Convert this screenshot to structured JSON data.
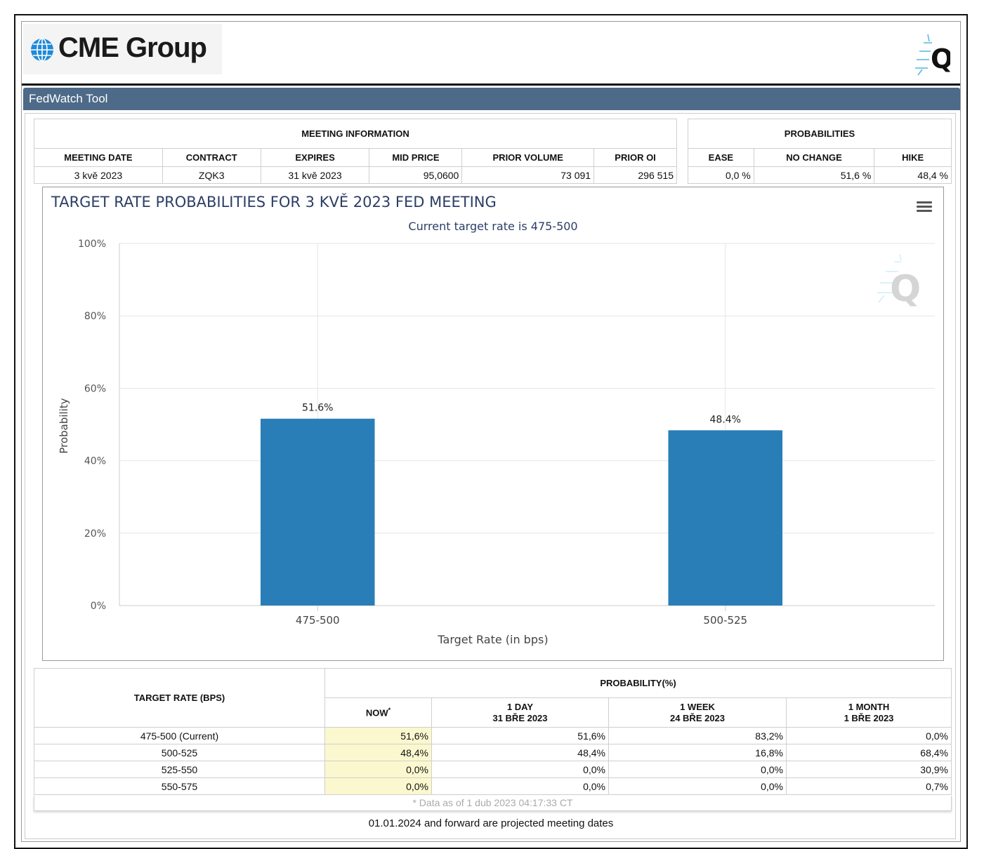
{
  "header": {
    "logo_text": "CME Group",
    "tool_title": "FedWatch Tool",
    "q_icon": "q-logo-icon"
  },
  "meeting_info": {
    "section_title": "MEETING INFORMATION",
    "columns": [
      "MEETING DATE",
      "CONTRACT",
      "EXPIRES",
      "MID PRICE",
      "PRIOR VOLUME",
      "PRIOR OI"
    ],
    "row": [
      "3 kvě 2023",
      "ZQK3",
      "31 kvě 2023",
      "95,0600",
      "73 091",
      "296 515"
    ]
  },
  "probabilities": {
    "section_title": "PROBABILITIES",
    "columns": [
      "EASE",
      "NO CHANGE",
      "HIKE"
    ],
    "row": [
      "0,0 %",
      "51,6 %",
      "48,4 %"
    ]
  },
  "chart": {
    "menu_icon": "hamburger-menu-icon",
    "watermark_icon": "q-watermark-icon"
  },
  "chart_data": {
    "type": "bar",
    "title": "TARGET RATE PROBABILITIES FOR 3 KVĚ 2023 FED MEETING",
    "subtitle": "Current target rate is 475-500",
    "categories": [
      "475-500",
      "500-525"
    ],
    "values": [
      51.6,
      48.4
    ],
    "data_labels": [
      "51.6%",
      "48.4%"
    ],
    "xlabel": "Target Rate (in bps)",
    "ylabel": "Probability",
    "ylim": [
      0,
      100
    ],
    "yticks": [
      "0%",
      "20%",
      "40%",
      "60%",
      "80%",
      "100%"
    ],
    "grid": true,
    "bar_color": "#2a7eb8"
  },
  "prob_table": {
    "rate_header": "TARGET RATE (BPS)",
    "prob_header": "PROBABILITY(%)",
    "col_now": "NOW",
    "col_now_mark": "*",
    "col_1day": [
      "1 DAY",
      "31 BŘE 2023"
    ],
    "col_1week": [
      "1 WEEK",
      "24 BŘE 2023"
    ],
    "col_1month": [
      "1 MONTH",
      "1 BŘE 2023"
    ],
    "rows": [
      {
        "rate": "475-500 (Current)",
        "now": "51,6%",
        "day": "51,6%",
        "week": "83,2%",
        "month": "0,0%"
      },
      {
        "rate": "500-525",
        "now": "48,4%",
        "day": "48,4%",
        "week": "16,8%",
        "month": "68,4%"
      },
      {
        "rate": "525-550",
        "now": "0,0%",
        "day": "0,0%",
        "week": "0,0%",
        "month": "30,9%"
      },
      {
        "rate": "550-575",
        "now": "0,0%",
        "day": "0,0%",
        "week": "0,0%",
        "month": "0,7%"
      }
    ],
    "footnote": "* Data as of 1 dub 2023 04:17:33 CT",
    "projected_note": "01.01.2024 and forward are projected meeting dates"
  }
}
